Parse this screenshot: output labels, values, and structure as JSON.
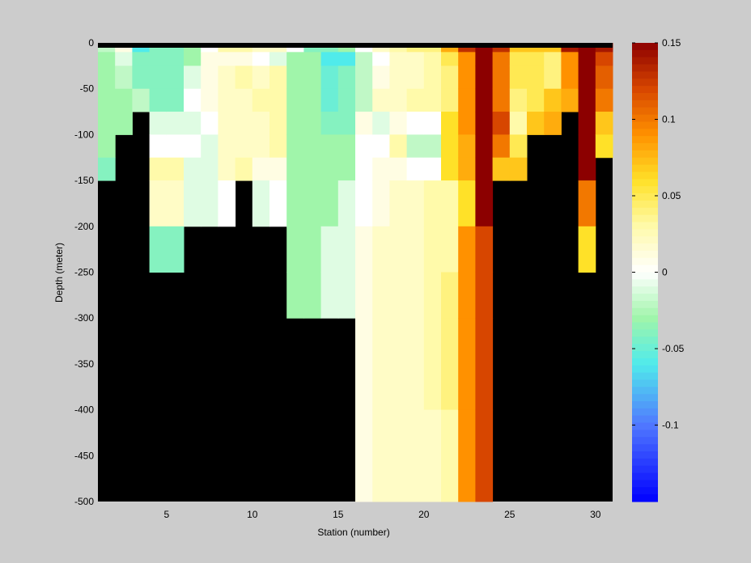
{
  "chart_data": {
    "type": "heatmap",
    "xlabel": "Station (number)",
    "ylabel": "Depth (meter)",
    "xlim": [
      1,
      31
    ],
    "ylim": [
      -500,
      0
    ],
    "x_ticks": [
      5,
      10,
      15,
      20,
      25,
      30
    ],
    "y_ticks": [
      0,
      -50,
      -100,
      -150,
      -200,
      -250,
      -300,
      -350,
      -400,
      -450,
      -500
    ],
    "colorbar": {
      "range": [
        -0.15,
        0.15
      ],
      "ticks": [
        0.15,
        0.1,
        0.05,
        0,
        -0.05,
        -0.1
      ],
      "tick_labels": [
        "0.15",
        "0.1",
        "0.05",
        "0",
        "-0.05",
        "-0.1"
      ]
    },
    "stations": [
      1,
      2,
      3,
      4,
      5,
      6,
      7,
      8,
      9,
      10,
      11,
      12,
      13,
      14,
      15,
      16,
      17,
      18,
      19,
      20,
      21,
      22,
      23,
      24,
      25,
      26,
      27,
      28,
      29,
      30
    ],
    "depth_bins": [
      0,
      -10,
      -25,
      -50,
      -75,
      -100,
      -125,
      -150,
      -200,
      -250,
      -300,
      -400,
      -500
    ],
    "values": [
      [
        -0.02,
        -0.03,
        -0.03,
        -0.03,
        -0.03,
        -0.03,
        -0.04
      ],
      [
        0.01,
        -0.01,
        -0.02,
        -0.03,
        -0.03,
        null,
        null,
        null,
        null,
        null,
        null,
        null
      ],
      [
        -0.06,
        -0.04,
        -0.04,
        -0.02,
        null,
        null,
        null,
        null,
        null,
        null,
        null,
        null
      ],
      [
        -0.04,
        -0.04,
        -0.04,
        -0.04,
        -0.01,
        0.0,
        0.03,
        0.02,
        -0.04,
        null,
        null,
        null
      ],
      [
        -0.04,
        -0.04,
        -0.04,
        -0.04,
        -0.01,
        0.0,
        0.03,
        0.02,
        -0.04,
        null,
        null,
        null
      ],
      [
        -0.03,
        -0.03,
        -0.01,
        0.0,
        -0.01,
        0.0,
        -0.01,
        -0.01,
        null,
        null,
        null,
        null
      ],
      [
        0.0,
        0.01,
        0.01,
        0.01,
        0.0,
        -0.01,
        -0.01,
        -0.01,
        null,
        null,
        null,
        null
      ],
      [
        0.03,
        0.01,
        0.02,
        0.02,
        0.02,
        0.02,
        0.02,
        0.0,
        null,
        null,
        null,
        null
      ],
      [
        0.03,
        0.01,
        0.03,
        0.02,
        0.02,
        0.02,
        0.03,
        null,
        null,
        null,
        null,
        null
      ],
      [
        0.02,
        0.0,
        0.02,
        0.03,
        0.02,
        0.02,
        0.01,
        -0.01,
        null,
        null,
        null,
        null
      ],
      [
        0.02,
        -0.01,
        0.03,
        0.03,
        0.03,
        0.03,
        0.01,
        0.0,
        null,
        null,
        null,
        null
      ],
      [
        0.0,
        -0.03,
        -0.03,
        -0.03,
        -0.03,
        -0.03,
        -0.03,
        -0.03,
        -0.03,
        -0.03,
        null,
        null
      ],
      [
        -0.04,
        -0.03,
        -0.03,
        -0.03,
        -0.03,
        -0.03,
        -0.03,
        -0.03,
        -0.03,
        -0.03,
        null,
        null
      ],
      [
        -0.04,
        -0.06,
        -0.05,
        -0.05,
        -0.04,
        -0.03,
        -0.03,
        -0.03,
        -0.01,
        -0.01,
        null,
        null
      ],
      [
        -0.03,
        -0.06,
        -0.04,
        -0.04,
        -0.04,
        -0.03,
        -0.03,
        -0.01,
        -0.01,
        -0.01,
        null,
        null
      ],
      [
        0.0,
        -0.02,
        -0.02,
        -0.02,
        0.01,
        0.0,
        0.0,
        0.0,
        0.01,
        0.01,
        0.01,
        0.01
      ],
      [
        0.02,
        0.0,
        0.01,
        0.02,
        -0.01,
        0.0,
        0.01,
        0.01,
        0.02,
        0.02,
        0.02,
        0.02
      ],
      [
        0.03,
        0.02,
        0.02,
        0.02,
        0.01,
        0.03,
        0.01,
        0.02,
        0.02,
        0.02,
        0.02,
        0.02
      ],
      [
        0.04,
        0.02,
        0.02,
        0.03,
        0.0,
        -0.02,
        0.0,
        0.02,
        0.02,
        0.02,
        0.02,
        0.02
      ],
      [
        0.04,
        0.03,
        0.03,
        0.03,
        0.0,
        -0.02,
        0.0,
        0.03,
        0.03,
        0.03,
        0.03,
        0.02
      ],
      [
        0.08,
        0.05,
        0.04,
        0.04,
        0.06,
        0.06,
        0.06,
        0.03,
        0.03,
        0.04,
        0.04,
        0.03
      ],
      [
        0.13,
        0.09,
        0.09,
        0.09,
        0.09,
        0.08,
        0.08,
        0.06,
        0.09,
        0.09,
        0.09,
        0.09
      ],
      [
        0.15,
        0.15,
        0.15,
        0.15,
        0.15,
        0.15,
        0.15,
        0.15,
        0.12,
        0.12,
        0.12,
        0.12
      ],
      [
        0.13,
        0.1,
        0.1,
        0.1,
        0.12,
        0.1,
        0.07,
        null,
        null,
        null,
        null,
        null
      ],
      [
        0.07,
        0.05,
        0.05,
        0.04,
        0.03,
        0.05,
        0.07,
        null,
        null,
        null,
        null,
        null
      ],
      [
        0.07,
        0.05,
        0.05,
        0.05,
        0.07,
        null,
        null,
        null,
        null,
        null,
        null,
        null
      ],
      [
        0.07,
        0.04,
        0.04,
        0.07,
        0.08,
        null,
        null,
        null,
        null,
        null,
        null,
        null
      ],
      [
        0.14,
        0.09,
        0.09,
        0.08,
        null,
        null,
        null,
        null,
        null,
        null,
        null,
        null
      ],
      [
        0.15,
        0.15,
        0.15,
        0.15,
        0.15,
        0.15,
        0.15,
        0.1,
        0.06,
        null,
        null,
        null
      ],
      [
        0.14,
        0.12,
        0.11,
        0.1,
        0.07,
        0.06,
        null,
        null,
        null,
        null,
        null,
        null
      ]
    ]
  }
}
